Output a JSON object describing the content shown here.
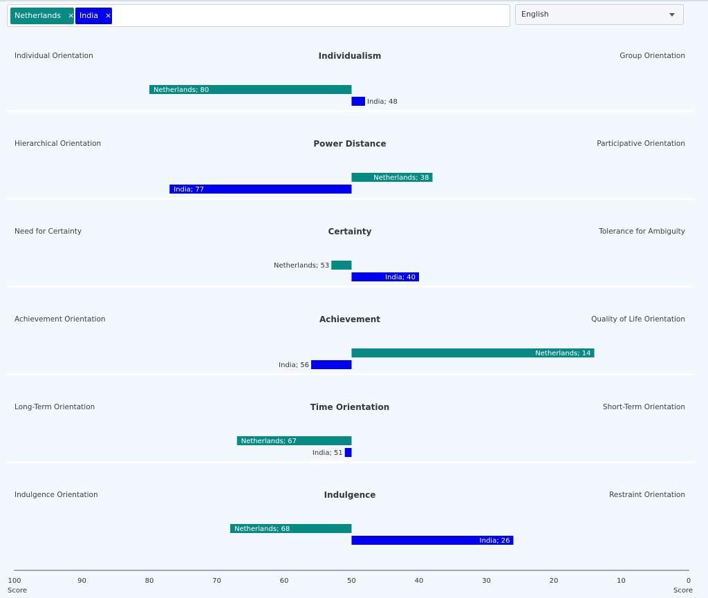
{
  "filters": {
    "tags": [
      {
        "label": "Netherlands",
        "remove": "×"
      },
      {
        "label": "India",
        "remove": "×"
      }
    ]
  },
  "language": {
    "selected": "English"
  },
  "colors": {
    "netherlands": "#078a84",
    "india": "#0000f0",
    "accent_text": "#3a3f44"
  },
  "chart_data": {
    "type": "bar",
    "orientation": "horizontal-diverging",
    "x_axis": {
      "ticks": [
        "100",
        "90",
        "80",
        "70",
        "60",
        "50",
        "40",
        "30",
        "20",
        "10",
        "0"
      ],
      "left_label": "Score",
      "right_label": "Score",
      "range": [
        100,
        0
      ],
      "reversed": true,
      "center": 50
    },
    "series": [
      {
        "name": "Netherlands",
        "color": "#078a84"
      },
      {
        "name": "India",
        "color": "#0000f0"
      }
    ],
    "dimensions": [
      {
        "title": "Individualism",
        "left_label": "Individual Orientation",
        "right_label": "Group Orientation",
        "values": [
          {
            "country": "Netherlands",
            "value": 80,
            "label": "Netherlands; 80"
          },
          {
            "country": "India",
            "value": 48,
            "label": "India; 48"
          }
        ]
      },
      {
        "title": "Power Distance",
        "left_label": "Hierarchical Orientation",
        "right_label": "Participative Orientation",
        "values": [
          {
            "country": "Netherlands",
            "value": 38,
            "label": "Netherlands; 38"
          },
          {
            "country": "India",
            "value": 77,
            "label": "India; 77"
          }
        ]
      },
      {
        "title": "Certainty",
        "left_label": "Need for Certainty",
        "right_label": "Tolerance for Ambiguity",
        "values": [
          {
            "country": "Netherlands",
            "value": 53,
            "label": "Netherlands; 53"
          },
          {
            "country": "India",
            "value": 40,
            "label": "India; 40"
          }
        ]
      },
      {
        "title": "Achievement",
        "left_label": "Achievement Orientation",
        "right_label": "Quality of Life Orientation",
        "values": [
          {
            "country": "Netherlands",
            "value": 14,
            "label": "Netherlands; 14"
          },
          {
            "country": "India",
            "value": 56,
            "label": "India; 56"
          }
        ]
      },
      {
        "title": "Time Orientation",
        "left_label": "Long-Term Orientation",
        "right_label": "Short-Term Orientation",
        "values": [
          {
            "country": "Netherlands",
            "value": 67,
            "label": "Netherlands; 67"
          },
          {
            "country": "India",
            "value": 51,
            "label": "India; 51"
          }
        ]
      },
      {
        "title": "Indulgence",
        "left_label": "Indulgence Orientation",
        "right_label": "Restraint Orientation",
        "values": [
          {
            "country": "Netherlands",
            "value": 68,
            "label": "Netherlands; 68"
          },
          {
            "country": "India",
            "value": 26,
            "label": "India; 26"
          }
        ]
      }
    ]
  }
}
